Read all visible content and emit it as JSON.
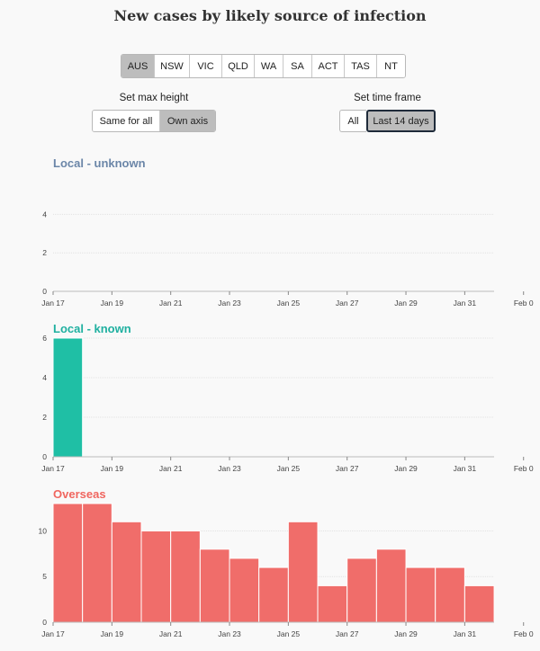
{
  "title": "New cases by likely source of infection",
  "states": [
    {
      "label": "AUS",
      "selected": true
    },
    {
      "label": "NSW",
      "selected": false
    },
    {
      "label": "VIC",
      "selected": false
    },
    {
      "label": "QLD",
      "selected": false
    },
    {
      "label": "WA",
      "selected": false
    },
    {
      "label": "SA",
      "selected": false
    },
    {
      "label": "ACT",
      "selected": false
    },
    {
      "label": "TAS",
      "selected": false
    },
    {
      "label": "NT",
      "selected": false
    }
  ],
  "max_height": {
    "label": "Set max height",
    "options": [
      "Same for all",
      "Own axis"
    ],
    "selected": "Own axis"
  },
  "time_frame": {
    "label": "Set time frame",
    "options": [
      "All",
      "Last 14 days"
    ],
    "selected": "Last 14 days"
  },
  "chart_data": [
    {
      "type": "bar",
      "title": "Local - unknown",
      "color": "#6b86a8",
      "bar_color": "#6b86a8",
      "x_ticks": [
        "Jan 17",
        "Jan 19",
        "Jan 21",
        "Jan 23",
        "Jan 25",
        "Jan 27",
        "Jan 29",
        "Jan 31",
        "Feb 0"
      ],
      "categories": [
        "Jan 17",
        "Jan 18",
        "Jan 19",
        "Jan 20",
        "Jan 21",
        "Jan 22",
        "Jan 23",
        "Jan 24",
        "Jan 25",
        "Jan 26",
        "Jan 27",
        "Jan 28",
        "Jan 29",
        "Jan 30",
        "Jan 31"
      ],
      "values": [
        0,
        0,
        0,
        0,
        0,
        0,
        0,
        0,
        0,
        0,
        0,
        0,
        0,
        0,
        0
      ],
      "y_ticks": [
        0,
        2,
        4
      ],
      "ylim": [
        0,
        5
      ],
      "grid": true
    },
    {
      "type": "bar",
      "title": "Local - known",
      "color": "#1fb0a0",
      "bar_color": "#1fbfa5",
      "x_ticks": [
        "Jan 17",
        "Jan 19",
        "Jan 21",
        "Jan 23",
        "Jan 25",
        "Jan 27",
        "Jan 29",
        "Jan 31",
        "Feb 0"
      ],
      "categories": [
        "Jan 17",
        "Jan 18",
        "Jan 19",
        "Jan 20",
        "Jan 21",
        "Jan 22",
        "Jan 23",
        "Jan 24",
        "Jan 25",
        "Jan 26",
        "Jan 27",
        "Jan 28",
        "Jan 29",
        "Jan 30",
        "Jan 31"
      ],
      "values": [
        6,
        0,
        0,
        0,
        0,
        0,
        0,
        0,
        0,
        0,
        0,
        0,
        0,
        0,
        0
      ],
      "y_ticks": [
        0,
        2,
        4,
        6
      ],
      "ylim": [
        0,
        6
      ],
      "grid": true
    },
    {
      "type": "bar",
      "title": "Overseas",
      "color": "#f0665f",
      "bar_color": "#f06d6a",
      "x_ticks": [
        "Jan 17",
        "Jan 19",
        "Jan 21",
        "Jan 23",
        "Jan 25",
        "Jan 27",
        "Jan 29",
        "Jan 31",
        "Feb 0"
      ],
      "categories": [
        "Jan 17",
        "Jan 18",
        "Jan 19",
        "Jan 20",
        "Jan 21",
        "Jan 22",
        "Jan 23",
        "Jan 24",
        "Jan 25",
        "Jan 26",
        "Jan 27",
        "Jan 28",
        "Jan 29",
        "Jan 30",
        "Jan 31"
      ],
      "values": [
        13,
        13,
        11,
        10,
        10,
        8,
        7,
        6,
        11,
        4,
        7,
        8,
        6,
        6,
        4
      ],
      "y_ticks": [
        0,
        5,
        10
      ],
      "ylim": [
        0,
        13
      ],
      "grid": true
    }
  ]
}
